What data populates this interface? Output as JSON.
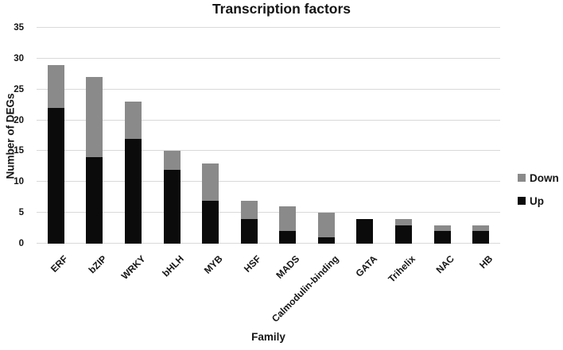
{
  "chart_data": {
    "type": "bar",
    "stacked": true,
    "title": "Transcription factors",
    "xlabel": "Family",
    "ylabel": "Number of DEGs",
    "ylim": [
      0,
      35
    ],
    "yticks": [
      0,
      5,
      10,
      15,
      20,
      25,
      30,
      35
    ],
    "grid": true,
    "gridline_color": "#d9d9d9",
    "background": "#ffffff",
    "categories": [
      "ERF",
      "bZIP",
      "WRKY",
      "bHLH",
      "MYB",
      "HSF",
      "MADS",
      "Calmodulin-binding",
      "GATA",
      "Trihelix",
      "NAC",
      "HB"
    ],
    "series": [
      {
        "name": "Up",
        "color": "#0b0b0b",
        "values": [
          22,
          14,
          17,
          12,
          7,
          4,
          2,
          1,
          4,
          3,
          2,
          2
        ]
      },
      {
        "name": "Down",
        "color": "#8a8a8a",
        "values": [
          7,
          13,
          6,
          3,
          6,
          3,
          4,
          4,
          0,
          1,
          1,
          1
        ]
      }
    ],
    "totals": [
      29,
      27,
      23,
      15,
      13,
      7,
      6,
      5,
      4,
      4,
      3,
      3
    ],
    "legend": {
      "position": "right",
      "entries": [
        "Down",
        "Up"
      ]
    }
  }
}
